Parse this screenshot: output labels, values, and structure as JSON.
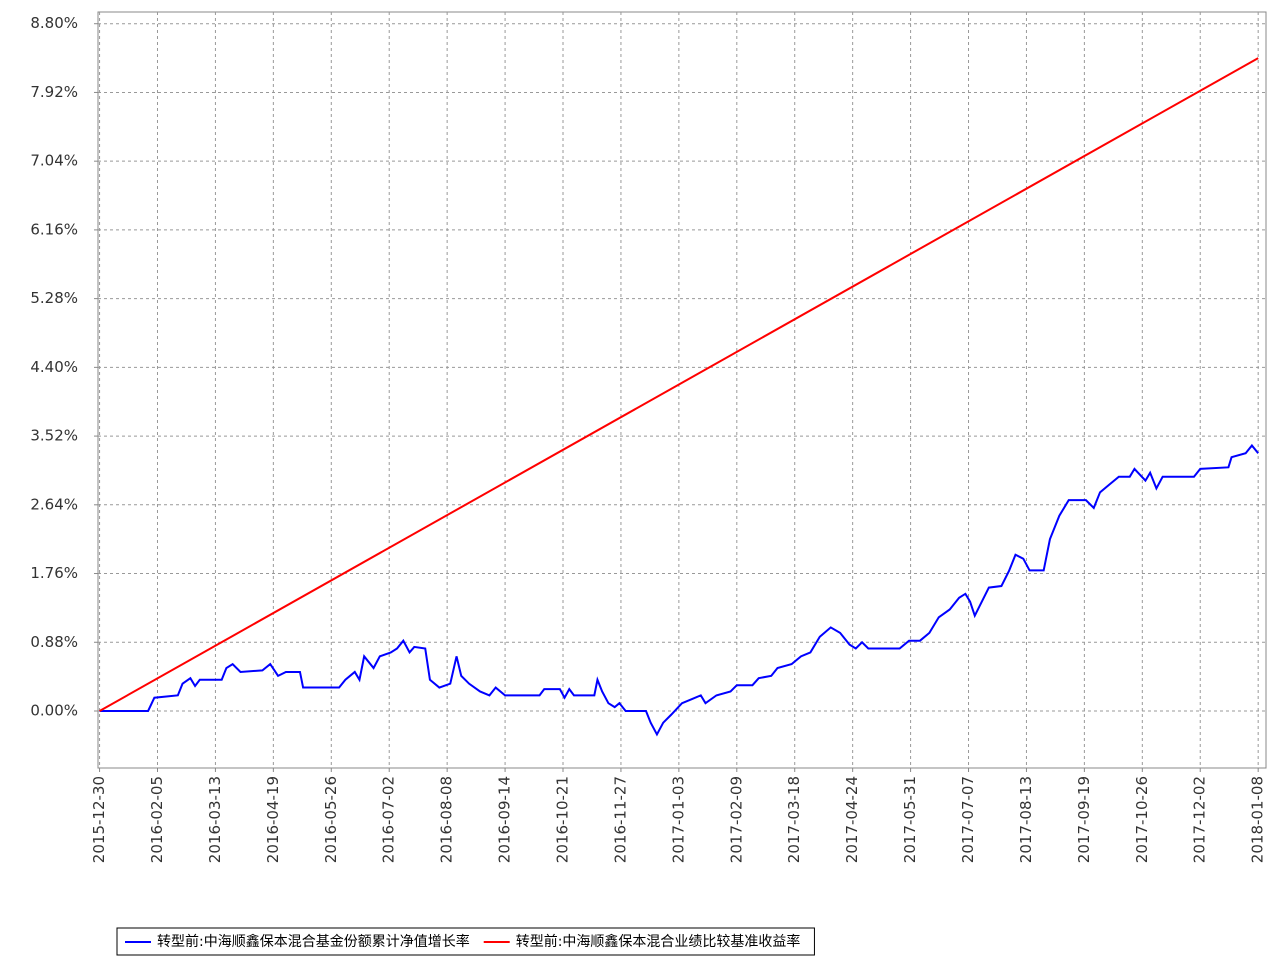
{
  "chart_data": {
    "type": "line",
    "xlim": [
      "2015-12-29",
      "2018-01-13"
    ],
    "xticks": [
      "2015-12-30",
      "2016-02-05",
      "2016-03-13",
      "2016-04-19",
      "2016-05-26",
      "2016-07-02",
      "2016-08-08",
      "2016-09-14",
      "2016-10-21",
      "2016-11-27",
      "2017-01-03",
      "2017-02-09",
      "2017-03-18",
      "2017-04-24",
      "2017-05-31",
      "2017-07-07",
      "2017-08-13",
      "2017-09-19",
      "2017-10-26",
      "2017-12-02",
      "2018-01-08"
    ],
    "ylim": [
      -0.73,
      8.95
    ],
    "yticks": [
      {
        "value": 0,
        "label": "0.00%"
      },
      {
        "value": 0.88,
        "label": "0.88%"
      },
      {
        "value": 1.76,
        "label": "1.76%"
      },
      {
        "value": 2.64,
        "label": "2.64%"
      },
      {
        "value": 3.52,
        "label": "3.52%"
      },
      {
        "value": 4.4,
        "label": "4.40%"
      },
      {
        "value": 5.28,
        "label": "5.28%"
      },
      {
        "value": 6.16,
        "label": "6.16%"
      },
      {
        "value": 7.04,
        "label": "7.04%"
      },
      {
        "value": 7.92,
        "label": "7.92%"
      },
      {
        "value": 8.8,
        "label": "8.80%"
      }
    ],
    "grid": true,
    "series": [
      {
        "name": "转型前:中海顺鑫保本混合基金份额累计净值增长率",
        "color": "#0000ff",
        "x": [
          "2015-12-30",
          "2016-01-30",
          "2016-02-03",
          "2016-02-18",
          "2016-02-21",
          "2016-02-26",
          "2016-02-29",
          "2016-03-03",
          "2016-03-17",
          "2016-03-20",
          "2016-03-24",
          "2016-03-29",
          "2016-04-12",
          "2016-04-17",
          "2016-04-22",
          "2016-04-27",
          "2016-05-06",
          "2016-05-08",
          "2016-05-31",
          "2016-06-04",
          "2016-06-10",
          "2016-06-13",
          "2016-06-16",
          "2016-06-22",
          "2016-06-26",
          "2016-07-03",
          "2016-07-07",
          "2016-07-11",
          "2016-07-15",
          "2016-07-18",
          "2016-07-25",
          "2016-07-28",
          "2016-08-03",
          "2016-08-10",
          "2016-08-14",
          "2016-08-17",
          "2016-08-22",
          "2016-08-29",
          "2016-09-04",
          "2016-09-08",
          "2016-09-14",
          "2016-10-06",
          "2016-10-09",
          "2016-10-19",
          "2016-10-22",
          "2016-10-25",
          "2016-10-28",
          "2016-11-10",
          "2016-11-12",
          "2016-11-15",
          "2016-11-19",
          "2016-11-23",
          "2016-11-26",
          "2016-11-30",
          "2016-12-13",
          "2016-12-16",
          "2016-12-20",
          "2016-12-24",
          "2016-12-29",
          "2017-01-05",
          "2017-01-11",
          "2017-01-17",
          "2017-01-20",
          "2017-01-27",
          "2017-02-05",
          "2017-02-09",
          "2017-02-19",
          "2017-02-23",
          "2017-03-03",
          "2017-03-07",
          "2017-03-16",
          "2017-03-22",
          "2017-03-28",
          "2017-04-03",
          "2017-04-10",
          "2017-04-16",
          "2017-04-22",
          "2017-04-26",
          "2017-04-30",
          "2017-05-04",
          "2017-05-24",
          "2017-05-30",
          "2017-06-06",
          "2017-06-12",
          "2017-06-18",
          "2017-06-25",
          "2017-07-01",
          "2017-07-05",
          "2017-07-08",
          "2017-07-11",
          "2017-07-15",
          "2017-07-20",
          "2017-07-28",
          "2017-08-02",
          "2017-08-06",
          "2017-08-11",
          "2017-08-15",
          "2017-08-24",
          "2017-08-28",
          "2017-09-03",
          "2017-09-09",
          "2017-09-20",
          "2017-09-25",
          "2017-09-29",
          "2017-10-05",
          "2017-10-11",
          "2017-10-18",
          "2017-10-21",
          "2017-10-28",
          "2017-10-31",
          "2017-11-04",
          "2017-11-08",
          "2017-11-28",
          "2017-12-02",
          "2017-12-20",
          "2017-12-22",
          "2017-12-31",
          "2018-01-04",
          "2018-01-08"
        ],
        "values": [
          0,
          0,
          0.17,
          0.2,
          0.35,
          0.42,
          0.32,
          0.4,
          0.4,
          0.55,
          0.6,
          0.5,
          0.52,
          0.6,
          0.45,
          0.5,
          0.5,
          0.3,
          0.3,
          0.4,
          0.5,
          0.4,
          0.7,
          0.55,
          0.7,
          0.75,
          0.8,
          0.9,
          0.75,
          0.82,
          0.8,
          0.4,
          0.3,
          0.35,
          0.7,
          0.45,
          0.35,
          0.25,
          0.2,
          0.3,
          0.2,
          0.2,
          0.28,
          0.28,
          0.17,
          0.28,
          0.2,
          0.2,
          0.4,
          0.25,
          0.1,
          0.05,
          0.1,
          0,
          0,
          -0.15,
          -0.3,
          -0.15,
          -0.05,
          0.1,
          0.15,
          0.2,
          0.1,
          0.2,
          0.25,
          0.33,
          0.33,
          0.42,
          0.45,
          0.55,
          0.6,
          0.7,
          0.75,
          0.95,
          1.07,
          1,
          0.85,
          0.8,
          0.88,
          0.8,
          0.8,
          0.9,
          0.9,
          1,
          1.2,
          1.3,
          1.45,
          1.5,
          1.4,
          1.22,
          1.38,
          1.58,
          1.6,
          1.8,
          2,
          1.95,
          1.8,
          1.8,
          2.2,
          2.5,
          2.7,
          2.7,
          2.6,
          2.8,
          2.9,
          3,
          3,
          3.1,
          2.95,
          3.05,
          2.85,
          3,
          3,
          3.1,
          3.12,
          3.25,
          3.3,
          3.4,
          3.3
        ]
      },
      {
        "name": "转型前:中海顺鑫保本混合业绩比较基准收益率",
        "color": "#ff0000",
        "x": [
          "2015-12-30",
          "2018-01-08"
        ],
        "values": [
          0,
          8.36
        ]
      }
    ]
  }
}
